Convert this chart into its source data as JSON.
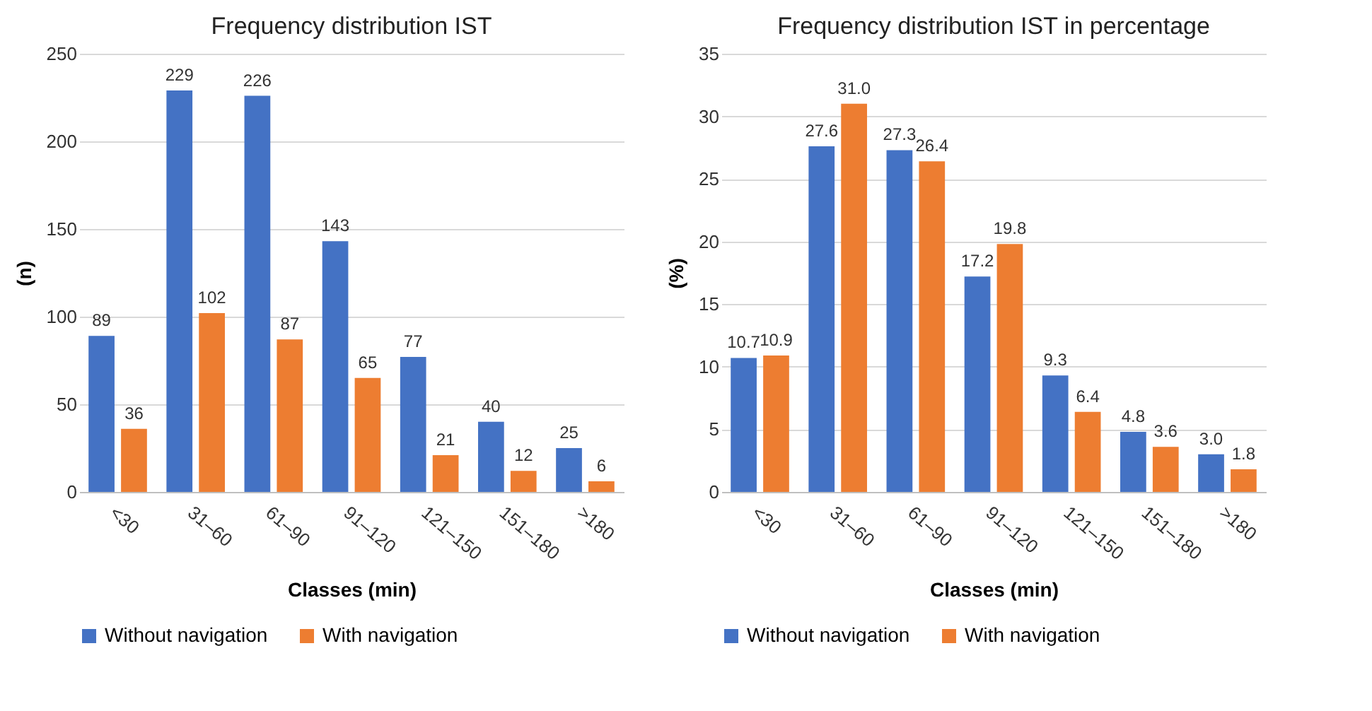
{
  "chart_data": [
    {
      "type": "bar",
      "title": "Frequency distribution IST",
      "xlabel": "Classes (min)",
      "ylabel": "(n)",
      "categories": [
        "<30",
        "31–60",
        "61–90",
        "91–120",
        "121–150",
        "151–180",
        ">180"
      ],
      "series": [
        {
          "name": "Without navigation",
          "color": "#4472c4",
          "values": [
            89,
            229,
            226,
            143,
            77,
            40,
            25
          ]
        },
        {
          "name": "With navigation",
          "color": "#ed7d31",
          "values": [
            36,
            102,
            87,
            65,
            21,
            12,
            6
          ]
        }
      ],
      "ylim": [
        0,
        250
      ],
      "yticks": [
        0,
        50,
        100,
        150,
        200,
        250
      ],
      "grid": "y",
      "legend": "bottom",
      "data_labels": true
    },
    {
      "type": "bar",
      "title": "Frequency distribution IST in percentage",
      "xlabel": "Classes (min)",
      "ylabel": "(%)",
      "categories": [
        "<30",
        "31–60",
        "61–90",
        "91–120",
        "121–150",
        "151–180",
        ">180"
      ],
      "series": [
        {
          "name": "Without navigation",
          "color": "#4472c4",
          "values": [
            10.7,
            27.6,
            27.3,
            17.2,
            9.3,
            4.8,
            3.0
          ],
          "value_labels": [
            "10.7",
            "27.6",
            "27.3",
            "17.2",
            "9.3",
            "4.8",
            "3.0"
          ]
        },
        {
          "name": "With navigation",
          "color": "#ed7d31",
          "values": [
            10.9,
            31.0,
            26.4,
            19.8,
            6.4,
            3.6,
            1.8
          ],
          "value_labels": [
            "10.9",
            "31.0",
            "26.4",
            "19.8",
            "6.4",
            "3.6",
            "1.8"
          ]
        }
      ],
      "ylim": [
        0,
        35
      ],
      "yticks": [
        0,
        5,
        10,
        15,
        20,
        25,
        30,
        35
      ],
      "grid": "y",
      "legend": "bottom"
    }
  ]
}
